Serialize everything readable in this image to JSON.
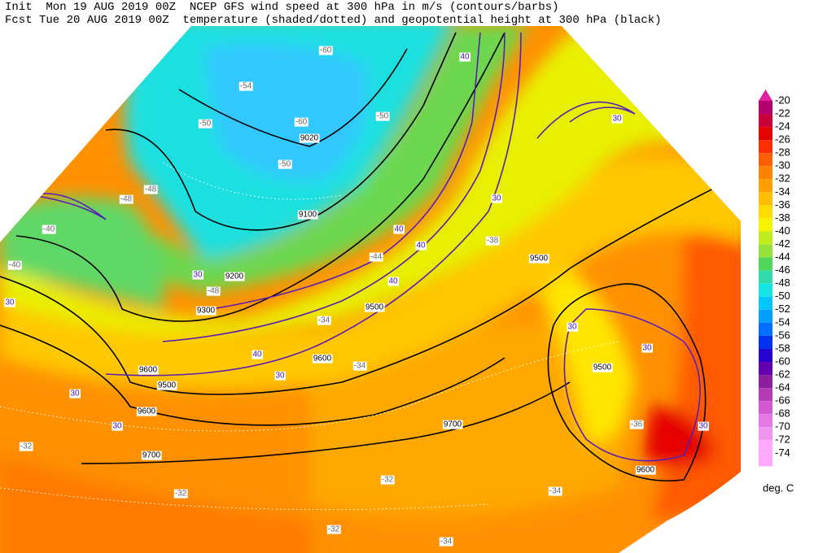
{
  "header": {
    "line1": "Init  Mon 19 AUG 2019 00Z  NCEP GFS wind speed at 300 hPa in m/s (contours/barbs)",
    "line2": "Fcst Tue 20 AUG 2019 00Z  temperature (shaded/dotted) and geopotential height at 300 hPa (black)"
  },
  "colorbar": {
    "levels": [
      -20,
      -22,
      -24,
      -26,
      -28,
      -30,
      -32,
      -34,
      -36,
      -38,
      -40,
      -42,
      -44,
      -46,
      -48,
      -50,
      -52,
      -54,
      -56,
      -58,
      -60,
      -62,
      -64,
      -66,
      -68,
      -70,
      -72,
      -74
    ],
    "colors": [
      "#e020a0",
      "#b4006e",
      "#c8003c",
      "#e60000",
      "#ff2d00",
      "#ff5f00",
      "#ff8200",
      "#ffa000",
      "#ffbe00",
      "#ffdc00",
      "#f5f500",
      "#c3ec1e",
      "#96e13c",
      "#50d75a",
      "#32dcaa",
      "#14e6e6",
      "#00c8ff",
      "#00a0ff",
      "#006eff",
      "#0032f0",
      "#2800d2",
      "#6400b4",
      "#8c1ea0",
      "#b43cb4",
      "#d25ad2",
      "#e678e6",
      "#f096f0",
      "#ffaaff"
    ],
    "unit": "deg. C"
  },
  "map_labels": {
    "height": [
      "9020",
      "9100",
      "9200",
      "9300",
      "9500",
      "9500",
      "9500",
      "9500",
      "9600",
      "9600",
      "9600",
      "9600",
      "9700",
      "9700"
    ],
    "wind": [
      "30",
      "30",
      "30",
      "30",
      "30",
      "30",
      "30",
      "30",
      "30",
      "30",
      "40",
      "40",
      "40",
      "40",
      "40"
    ],
    "temperature": [
      "-50",
      "-54",
      "-60",
      "-50",
      "-48",
      "-48",
      "-40",
      "-40",
      "-60",
      "-48",
      "-44",
      "-50",
      "-34",
      "-32",
      "-32",
      "-32",
      "-34",
      "-36",
      "-38",
      "-34",
      "-32",
      "-34"
    ]
  }
}
